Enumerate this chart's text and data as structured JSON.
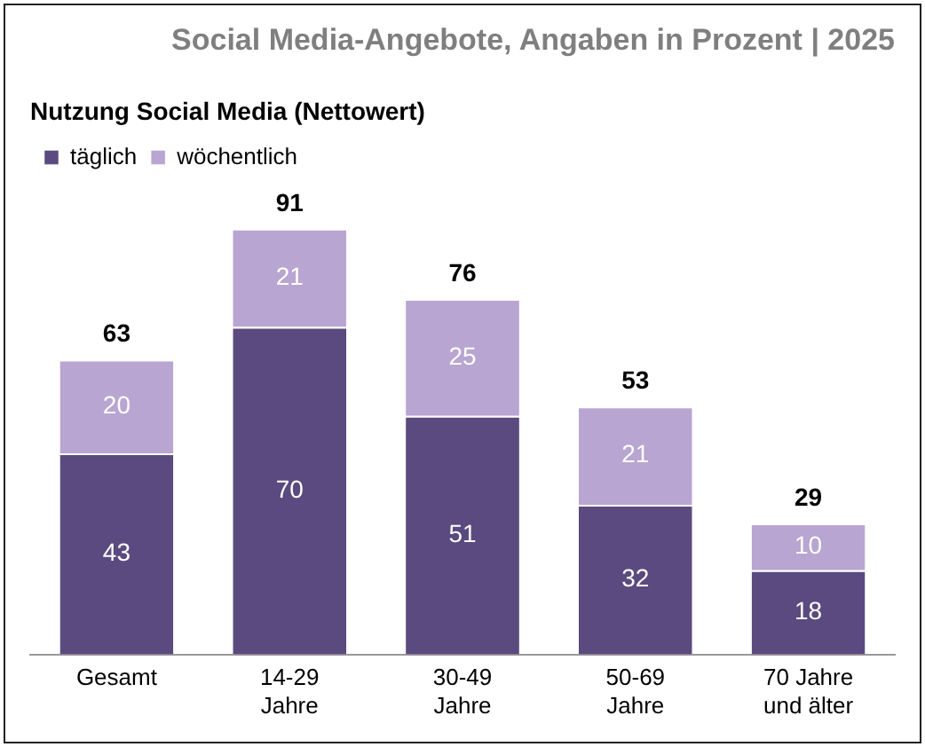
{
  "chart_data": {
    "type": "bar",
    "title": "Social Media-Angebote, Angaben in Prozent | 2025",
    "subtitle": "Nutzung Social Media (Nettowert)",
    "categories": [
      "Gesamt",
      "14-29\nJahre",
      "30-49\nJahre",
      "50-69\nJahre",
      "70 Jahre\nund älter"
    ],
    "series": [
      {
        "name": "täglich",
        "color": "#5b4a7f",
        "values": [
          43,
          70,
          51,
          32,
          18
        ]
      },
      {
        "name": "wöchentlich",
        "color": "#b9a5d1",
        "values": [
          20,
          21,
          25,
          21,
          10
        ]
      }
    ],
    "stacked": true,
    "data_labels": true,
    "totals": [
      "63",
      "91",
      "76",
      "53",
      "29"
    ],
    "legend": "top left",
    "grid": false,
    "tick_labels": "x"
  }
}
